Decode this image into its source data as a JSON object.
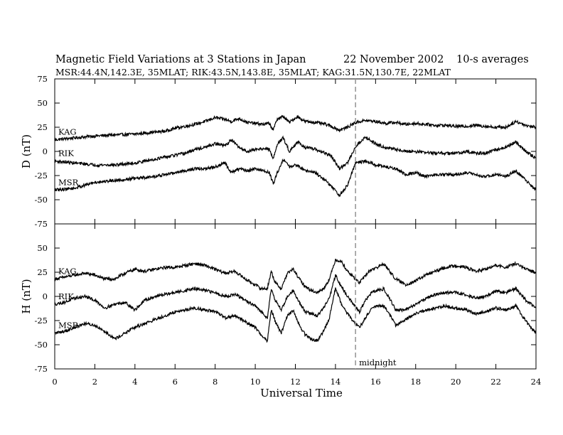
{
  "title": {
    "main": "Magnetic Field Variations at 3 Stations in Japan",
    "date": "22 November 2002",
    "averaging": "10-s averages"
  },
  "subtitle": "MSR:44.4N,142.3E, 35MLAT;  RIK:43.5N,143.8E, 35MLAT;  KAG:31.5N,130.7E, 22MLAT",
  "colors": {
    "trace": "#000000",
    "midnight_line": "#999999",
    "frame": "#000000"
  },
  "chart_data": [
    {
      "type": "line",
      "panel": "D",
      "ylabel": "D (nT)",
      "ylim": [
        -75,
        75
      ],
      "yticks": [
        -75,
        -50,
        -25,
        0,
        25,
        50,
        75
      ],
      "xlim": [
        0,
        24
      ],
      "xticks": [
        0,
        2,
        4,
        6,
        8,
        10,
        12,
        14,
        16,
        18,
        20,
        22,
        24
      ],
      "grid": false,
      "series": [
        {
          "name": "KAG",
          "x": [
            0,
            1,
            2,
            3,
            4,
            5,
            5.5,
            6,
            6.5,
            7,
            7.5,
            8,
            8.5,
            8.8,
            9.2,
            9.6,
            10,
            10.4,
            10.7,
            10.9,
            11.1,
            11.4,
            11.7,
            12.1,
            12.5,
            13,
            13.5,
            13.8,
            14.2,
            14.6,
            15,
            15.5,
            16,
            16.5,
            17,
            17.5,
            18,
            18.5,
            19,
            19.5,
            20,
            20.5,
            21,
            21.5,
            22,
            22.5,
            23,
            23.5,
            24
          ],
          "y": [
            12,
            14,
            16,
            17,
            18,
            20,
            21,
            24,
            26,
            28,
            31,
            35,
            33,
            31,
            34,
            30,
            29,
            28,
            29,
            22,
            34,
            36,
            30,
            36,
            31,
            30,
            28,
            26,
            22,
            25,
            30,
            32,
            31,
            29,
            30,
            28,
            29,
            28,
            27,
            27,
            26,
            26,
            27,
            26,
            25,
            25,
            31,
            27,
            25
          ]
        },
        {
          "name": "RIK",
          "x": [
            0,
            1,
            2,
            3,
            4,
            5,
            5.5,
            6,
            6.5,
            7,
            7.5,
            8,
            8.5,
            8.8,
            9.2,
            9.6,
            10,
            10.4,
            10.7,
            10.9,
            11.1,
            11.4,
            11.7,
            12.1,
            12.5,
            13,
            13.5,
            13.8,
            14.2,
            14.6,
            15,
            15.5,
            16,
            16.5,
            17,
            17.5,
            18,
            18.5,
            19,
            19.5,
            20,
            20.5,
            21,
            21.5,
            22,
            22.5,
            23,
            23.5,
            24
          ],
          "y": [
            -10,
            -12,
            -14,
            -14,
            -12,
            -8,
            -6,
            -4,
            -2,
            2,
            4,
            8,
            6,
            12,
            4,
            0,
            2,
            3,
            2,
            -8,
            8,
            14,
            0,
            10,
            4,
            2,
            -2,
            -5,
            -18,
            -12,
            5,
            15,
            8,
            4,
            2,
            0,
            0,
            -1,
            -2,
            -2,
            -2,
            0,
            -2,
            -2,
            2,
            4,
            10,
            0,
            -7
          ]
        },
        {
          "name": "MSR",
          "x": [
            0,
            1,
            2,
            3,
            4,
            5,
            5.5,
            6,
            6.5,
            7,
            7.5,
            8,
            8.5,
            8.8,
            9.2,
            9.6,
            10,
            10.4,
            10.7,
            10.9,
            11.1,
            11.4,
            11.7,
            12.1,
            12.5,
            13,
            13.5,
            13.8,
            14.2,
            14.6,
            15,
            15.5,
            16,
            16.5,
            17,
            17.5,
            18,
            18.5,
            19,
            19.5,
            20,
            20.5,
            21,
            21.5,
            22,
            22.5,
            23,
            23.5,
            24
          ],
          "y": [
            -40,
            -38,
            -32,
            -30,
            -28,
            -26,
            -24,
            -22,
            -20,
            -18,
            -18,
            -16,
            -12,
            -22,
            -18,
            -20,
            -18,
            -20,
            -22,
            -34,
            -22,
            -8,
            -16,
            -14,
            -20,
            -22,
            -30,
            -36,
            -46,
            -35,
            -12,
            -10,
            -14,
            -16,
            -18,
            -24,
            -22,
            -26,
            -24,
            -24,
            -24,
            -22,
            -24,
            -26,
            -24,
            -26,
            -20,
            -30,
            -40
          ]
        }
      ]
    },
    {
      "type": "line",
      "panel": "H",
      "ylabel": "H (nT)",
      "xlabel": "Universal Time",
      "ylim": [
        -75,
        75
      ],
      "yticks": [
        -75,
        -50,
        -25,
        0,
        25,
        50,
        75
      ],
      "xlim": [
        0,
        24
      ],
      "xticks": [
        0,
        2,
        4,
        6,
        8,
        10,
        12,
        14,
        16,
        18,
        20,
        22,
        24
      ],
      "grid": false,
      "series": [
        {
          "name": "KAG",
          "x": [
            0,
            0.5,
            1,
            1.5,
            2,
            2.5,
            3,
            3.5,
            4,
            4.5,
            5,
            5.5,
            6,
            6.5,
            7,
            7.5,
            8,
            8.5,
            9,
            9.5,
            10,
            10.3,
            10.6,
            10.8,
            11,
            11.3,
            11.6,
            11.9,
            12.2,
            12.5,
            12.8,
            13.1,
            13.4,
            13.7,
            14,
            14.3,
            14.6,
            14.9,
            15.2,
            15.5,
            15.8,
            16.1,
            16.4,
            16.7,
            17,
            17.5,
            18,
            18.5,
            19,
            19.5,
            20,
            20.5,
            21,
            21.5,
            22,
            22.5,
            23,
            23.5,
            24
          ],
          "y": [
            18,
            20,
            22,
            24,
            22,
            18,
            18,
            24,
            28,
            26,
            28,
            30,
            30,
            32,
            34,
            32,
            28,
            24,
            26,
            18,
            12,
            8,
            8,
            26,
            14,
            8,
            24,
            28,
            18,
            10,
            6,
            4,
            8,
            18,
            38,
            36,
            26,
            20,
            14,
            22,
            28,
            30,
            34,
            26,
            18,
            12,
            16,
            22,
            26,
            30,
            32,
            30,
            26,
            28,
            32,
            30,
            34,
            28,
            25
          ]
        },
        {
          "name": "RIK",
          "x": [
            0,
            0.5,
            1,
            1.5,
            2,
            2.5,
            3,
            3.5,
            4,
            4.5,
            5,
            5.5,
            6,
            6.5,
            7,
            7.5,
            8,
            8.5,
            9,
            9.5,
            10,
            10.3,
            10.6,
            10.8,
            11,
            11.3,
            11.6,
            11.9,
            12.2,
            12.5,
            12.8,
            13.1,
            13.4,
            13.7,
            14,
            14.3,
            14.6,
            14.9,
            15.2,
            15.5,
            15.8,
            16.1,
            16.4,
            16.7,
            17,
            17.5,
            18,
            18.5,
            19,
            19.5,
            20,
            20.5,
            21,
            21.5,
            22,
            22.5,
            23,
            23.5,
            24
          ],
          "y": [
            -8,
            -6,
            -2,
            0,
            -4,
            -12,
            -8,
            -6,
            -14,
            -4,
            0,
            2,
            4,
            6,
            8,
            6,
            4,
            0,
            2,
            -4,
            -10,
            -16,
            -22,
            8,
            -4,
            -14,
            0,
            6,
            -6,
            -16,
            -18,
            -20,
            -12,
            -2,
            22,
            10,
            0,
            -8,
            -16,
            -4,
            4,
            6,
            8,
            -2,
            -14,
            -14,
            -8,
            -2,
            2,
            4,
            4,
            2,
            -2,
            0,
            6,
            4,
            8,
            -4,
            -12
          ]
        },
        {
          "name": "MSR",
          "x": [
            0,
            0.5,
            1,
            1.5,
            2,
            2.5,
            3,
            3.5,
            4,
            4.5,
            5,
            5.5,
            6,
            6.5,
            7,
            7.5,
            8,
            8.5,
            9,
            9.5,
            10,
            10.3,
            10.6,
            10.8,
            11,
            11.3,
            11.6,
            11.9,
            12.2,
            12.5,
            12.8,
            13.1,
            13.4,
            13.7,
            14,
            14.3,
            14.6,
            14.9,
            15.2,
            15.5,
            15.8,
            16.1,
            16.4,
            16.7,
            17,
            17.5,
            18,
            18.5,
            19,
            19.5,
            20,
            20.5,
            21,
            21.5,
            22,
            22.5,
            23,
            23.5,
            24
          ],
          "y": [
            -38,
            -36,
            -32,
            -28,
            -30,
            -36,
            -44,
            -38,
            -32,
            -28,
            -24,
            -20,
            -16,
            -14,
            -12,
            -14,
            -16,
            -22,
            -20,
            -26,
            -32,
            -40,
            -46,
            -14,
            -26,
            -38,
            -20,
            -14,
            -30,
            -40,
            -44,
            -46,
            -36,
            -22,
            8,
            -8,
            -18,
            -26,
            -32,
            -22,
            -12,
            -10,
            -10,
            -18,
            -30,
            -24,
            -18,
            -14,
            -12,
            -10,
            -12,
            -14,
            -18,
            -16,
            -12,
            -14,
            -10,
            -26,
            -38
          ]
        }
      ]
    }
  ],
  "annotations": {
    "midnight_ut": 15,
    "midnight_label": "midnight"
  }
}
